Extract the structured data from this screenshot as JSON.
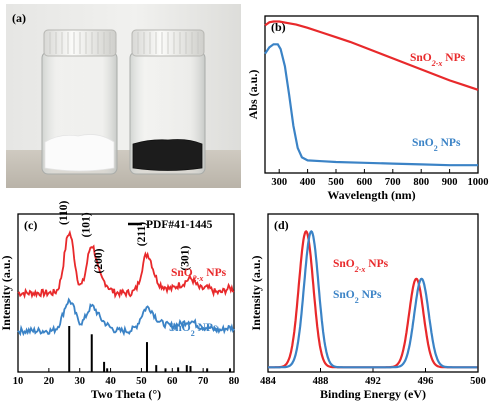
{
  "panels": {
    "a": {
      "label": "(a)"
    },
    "b": {
      "label": "(b)"
    },
    "c": {
      "label": "(c)"
    },
    "d": {
      "label": "(d)"
    }
  },
  "colors": {
    "red": "#e8292b",
    "blue": "#3b83c6",
    "black": "#000000"
  },
  "chart_data": [
    {
      "panel": "b",
      "type": "line",
      "xlabel": "Wavelength (nm)",
      "ylabel": "Abs (a.u.)",
      "xlim": [
        250,
        1000
      ],
      "xticks": [
        300,
        400,
        500,
        600,
        700,
        800,
        900,
        1000
      ],
      "series": [
        {
          "name": "SnO2-x NPs",
          "label_main": "SnO",
          "label_sub": "2-x",
          "label_tail": " NPs",
          "color": "#e8292b",
          "x": [
            250,
            265,
            280,
            300,
            330,
            360,
            400,
            450,
            500,
            550,
            600,
            650,
            700,
            750,
            800,
            850,
            900,
            950,
            1000
          ],
          "y": [
            0.94,
            0.96,
            0.965,
            0.965,
            0.955,
            0.945,
            0.925,
            0.895,
            0.865,
            0.835,
            0.8,
            0.765,
            0.73,
            0.695,
            0.66,
            0.625,
            0.59,
            0.56,
            0.53
          ]
        },
        {
          "name": "SnO2 NPs",
          "label_main": "SnO",
          "label_sub": "2",
          "label_tail": " NPs",
          "color": "#3b83c6",
          "x": [
            250,
            265,
            280,
            295,
            305,
            320,
            335,
            350,
            365,
            380,
            400,
            450,
            500,
            600,
            700,
            800,
            900,
            1000
          ],
          "y": [
            0.76,
            0.8,
            0.82,
            0.82,
            0.79,
            0.68,
            0.5,
            0.3,
            0.16,
            0.1,
            0.08,
            0.075,
            0.07,
            0.065,
            0.06,
            0.055,
            0.05,
            0.05
          ]
        }
      ]
    },
    {
      "panel": "c",
      "type": "line",
      "xlabel": "Two Theta (°)",
      "ylabel": "Intensity (a.u.)",
      "xlim": [
        10,
        80
      ],
      "xticks": [
        10,
        20,
        30,
        40,
        50,
        60,
        70,
        80
      ],
      "legend": "PDF#41-1445",
      "peak_labels": [
        {
          "text": "(110)",
          "x": 26.6
        },
        {
          "text": "(101)",
          "x": 33.9
        },
        {
          "text": "(200)",
          "x": 37.9
        },
        {
          "text": "(211)",
          "x": 51.8
        },
        {
          "text": "(301)",
          "x": 65.9
        }
      ],
      "reference_peaks": {
        "x": [
          26.6,
          33.9,
          37.9,
          38.9,
          51.8,
          54.8,
          57.8,
          61.9,
          64.7,
          65.9,
          71.3,
          78.7
        ],
        "h": [
          1.0,
          0.82,
          0.22,
          0.08,
          0.65,
          0.15,
          0.08,
          0.1,
          0.15,
          0.13,
          0.08,
          0.08
        ]
      },
      "series": [
        {
          "name": "SnO2-x NPs",
          "label_main": "SnO",
          "label_sub": "2-x",
          "label_tail": " NPs",
          "color": "#e8292b",
          "baseline": 0.5,
          "noise": 0.022,
          "peaks": [
            [
              26.6,
              0.38,
              1.6
            ],
            [
              33.9,
              0.3,
              1.6
            ],
            [
              37.9,
              0.06,
              1.5
            ],
            [
              51.8,
              0.24,
              1.7
            ],
            [
              54.8,
              0.04,
              1.5
            ],
            [
              57.8,
              0.03,
              1.5
            ],
            [
              61.9,
              0.04,
              1.5
            ],
            [
              65.9,
              0.09,
              1.8
            ],
            [
              71.3,
              0.03,
              1.5
            ],
            [
              78.7,
              0.03,
              1.5
            ]
          ]
        },
        {
          "name": "SnO2 NPs",
          "label_main": "SnO",
          "label_sub": "2",
          "label_tail": " NPs",
          "color": "#3b83c6",
          "baseline": 0.26,
          "noise": 0.02,
          "peaks": [
            [
              26.6,
              0.19,
              1.9
            ],
            [
              33.9,
              0.15,
              1.9
            ],
            [
              37.9,
              0.04,
              1.8
            ],
            [
              51.8,
              0.14,
              2.0
            ],
            [
              54.8,
              0.03,
              1.8
            ],
            [
              57.8,
              0.03,
              1.8
            ],
            [
              61.9,
              0.03,
              1.8
            ],
            [
              65.9,
              0.06,
              2.0
            ],
            [
              71.3,
              0.02,
              1.8
            ],
            [
              78.7,
              0.02,
              1.8
            ]
          ]
        }
      ]
    },
    {
      "panel": "d",
      "type": "line",
      "xlabel": "Binding Energy (eV)",
      "ylabel": "Intensity (a.u.)",
      "xlim": [
        484,
        500
      ],
      "xticks": [
        484,
        488,
        492,
        496,
        500
      ],
      "series": [
        {
          "name": "SnO2-x NPs",
          "label_main": "SnO",
          "label_sub": "2-x",
          "label_tail": " NPs",
          "color": "#e8292b",
          "baseline": 0.03,
          "peaks": [
            [
              486.9,
              0.86,
              0.55
            ],
            [
              495.3,
              0.56,
              0.55
            ]
          ]
        },
        {
          "name": "SnO2 NPs",
          "label_main": "SnO",
          "label_sub": "2",
          "label_tail": " NPs",
          "color": "#3b83c6",
          "baseline": 0.03,
          "peaks": [
            [
              487.3,
              0.86,
              0.55
            ],
            [
              495.7,
              0.56,
              0.55
            ]
          ]
        }
      ]
    }
  ]
}
